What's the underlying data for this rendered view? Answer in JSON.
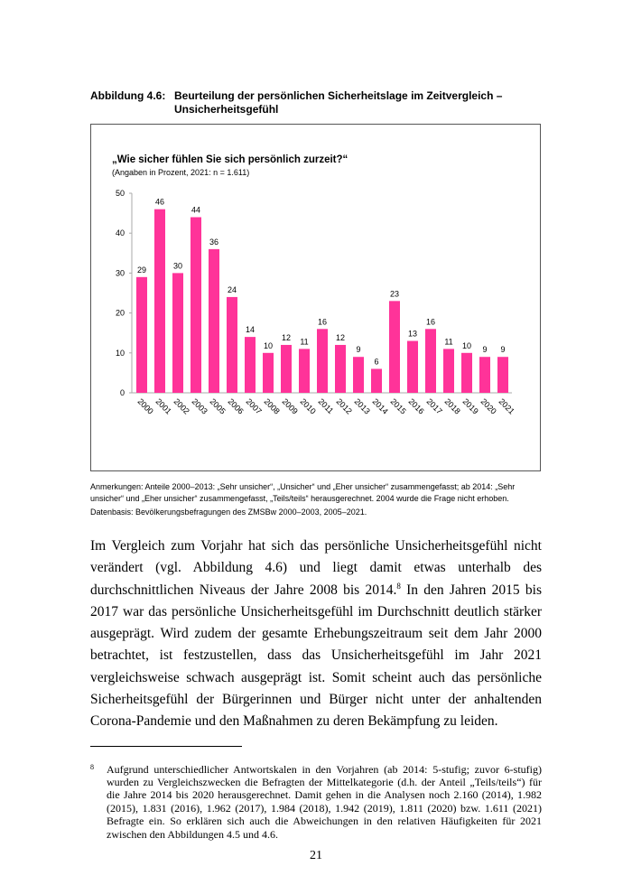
{
  "figure": {
    "label": "Abbildung 4.6:",
    "title": "Beurteilung der persönlichen Sicherheitslage im Zeitvergleich – Unsicherheitsgefühl"
  },
  "chart_data": {
    "type": "bar",
    "title": "„Wie sicher fühlen Sie sich persönlich zurzeit?“",
    "subtitle": "(Angaben in Prozent, 2021: n = 1.611)",
    "categories": [
      "2000",
      "2001",
      "2002",
      "2003",
      "2005",
      "2006",
      "2007",
      "2008",
      "2009",
      "2010",
      "2011",
      "2012",
      "2013",
      "2014",
      "2015",
      "2016",
      "2017",
      "2018",
      "2019",
      "2020",
      "2021"
    ],
    "values": [
      29,
      46,
      30,
      44,
      36,
      24,
      14,
      10,
      12,
      11,
      16,
      12,
      9,
      6,
      23,
      13,
      16,
      11,
      10,
      9,
      9
    ],
    "yticks": [
      0,
      10,
      20,
      30,
      40,
      50
    ],
    "ylim": [
      0,
      50
    ],
    "xlabel": "",
    "ylabel": "",
    "grid": false,
    "color": "#ff3399"
  },
  "notes": "Anmerkungen: Anteile 2000–2013: „Sehr unsicher“, „Unsicher“ und „Eher unsicher“ zusammengefasst; ab 2014: „Sehr unsicher“ und „Eher unsicher“ zusammengefasst, „Teils/teils“ herausgerechnet. 2004 wurde die Frage nicht erhoben.",
  "source": "Datenbasis: Bevölkerungsbefragungen des ZMSBw 2000–2003, 2005–2021.",
  "body": {
    "part1": "Im Vergleich zum Vorjahr hat sich das persönliche Unsicherheitsgefühl nicht verändert (vgl. Abbildung 4.6) und liegt damit etwas unterhalb des durchschnittlichen Niveaus der Jahre 2008 bis 2014.",
    "ref": "8",
    "part2": " In den Jahren 2015 bis 2017 war das persönliche Unsicherheitsge­fühl im Durchschnitt deutlich stärker ausgeprägt. Wird zudem der gesamte Erhebungs­zeitraum seit dem Jahr 2000 betrachtet, ist festzustellen, dass das Unsicherheitsgefühl im Jahr 2021 vergleichsweise schwach ausgeprägt ist. Somit scheint auch das persönliche Sicherheitsgefühl der Bürgerinnen und Bürger nicht unter der anhaltenden Corona-Pan­demie und den Maßnahmen zu deren Bekämpfung zu leiden."
  },
  "footnote": {
    "mark": "8",
    "text": "Aufgrund unterschiedlicher Antwortskalen in den Vorjahren (ab 2014: 5-stufig; zuvor 6-stufig) wurden zu Vergleichszwecken die Befragten der Mittelkategorie (d.h. der Anteil „Teils/teils“) für die Jahre 2014 bis 2020 herausgerechnet. Damit gehen in die Analysen noch 2.160 (2014), 1.982 (2015), 1.831 (2016), 1.962 (2017), 1.984 (2018), 1.942 (2019), 1.811 (2020) bzw. 1.611 (2021) Befragte ein. So erklären sich auch die Abweichungen in den relativen Häufigkeiten für 2021 zwischen den Abbildungen 4.5 und 4.6."
  },
  "page_number": "21"
}
